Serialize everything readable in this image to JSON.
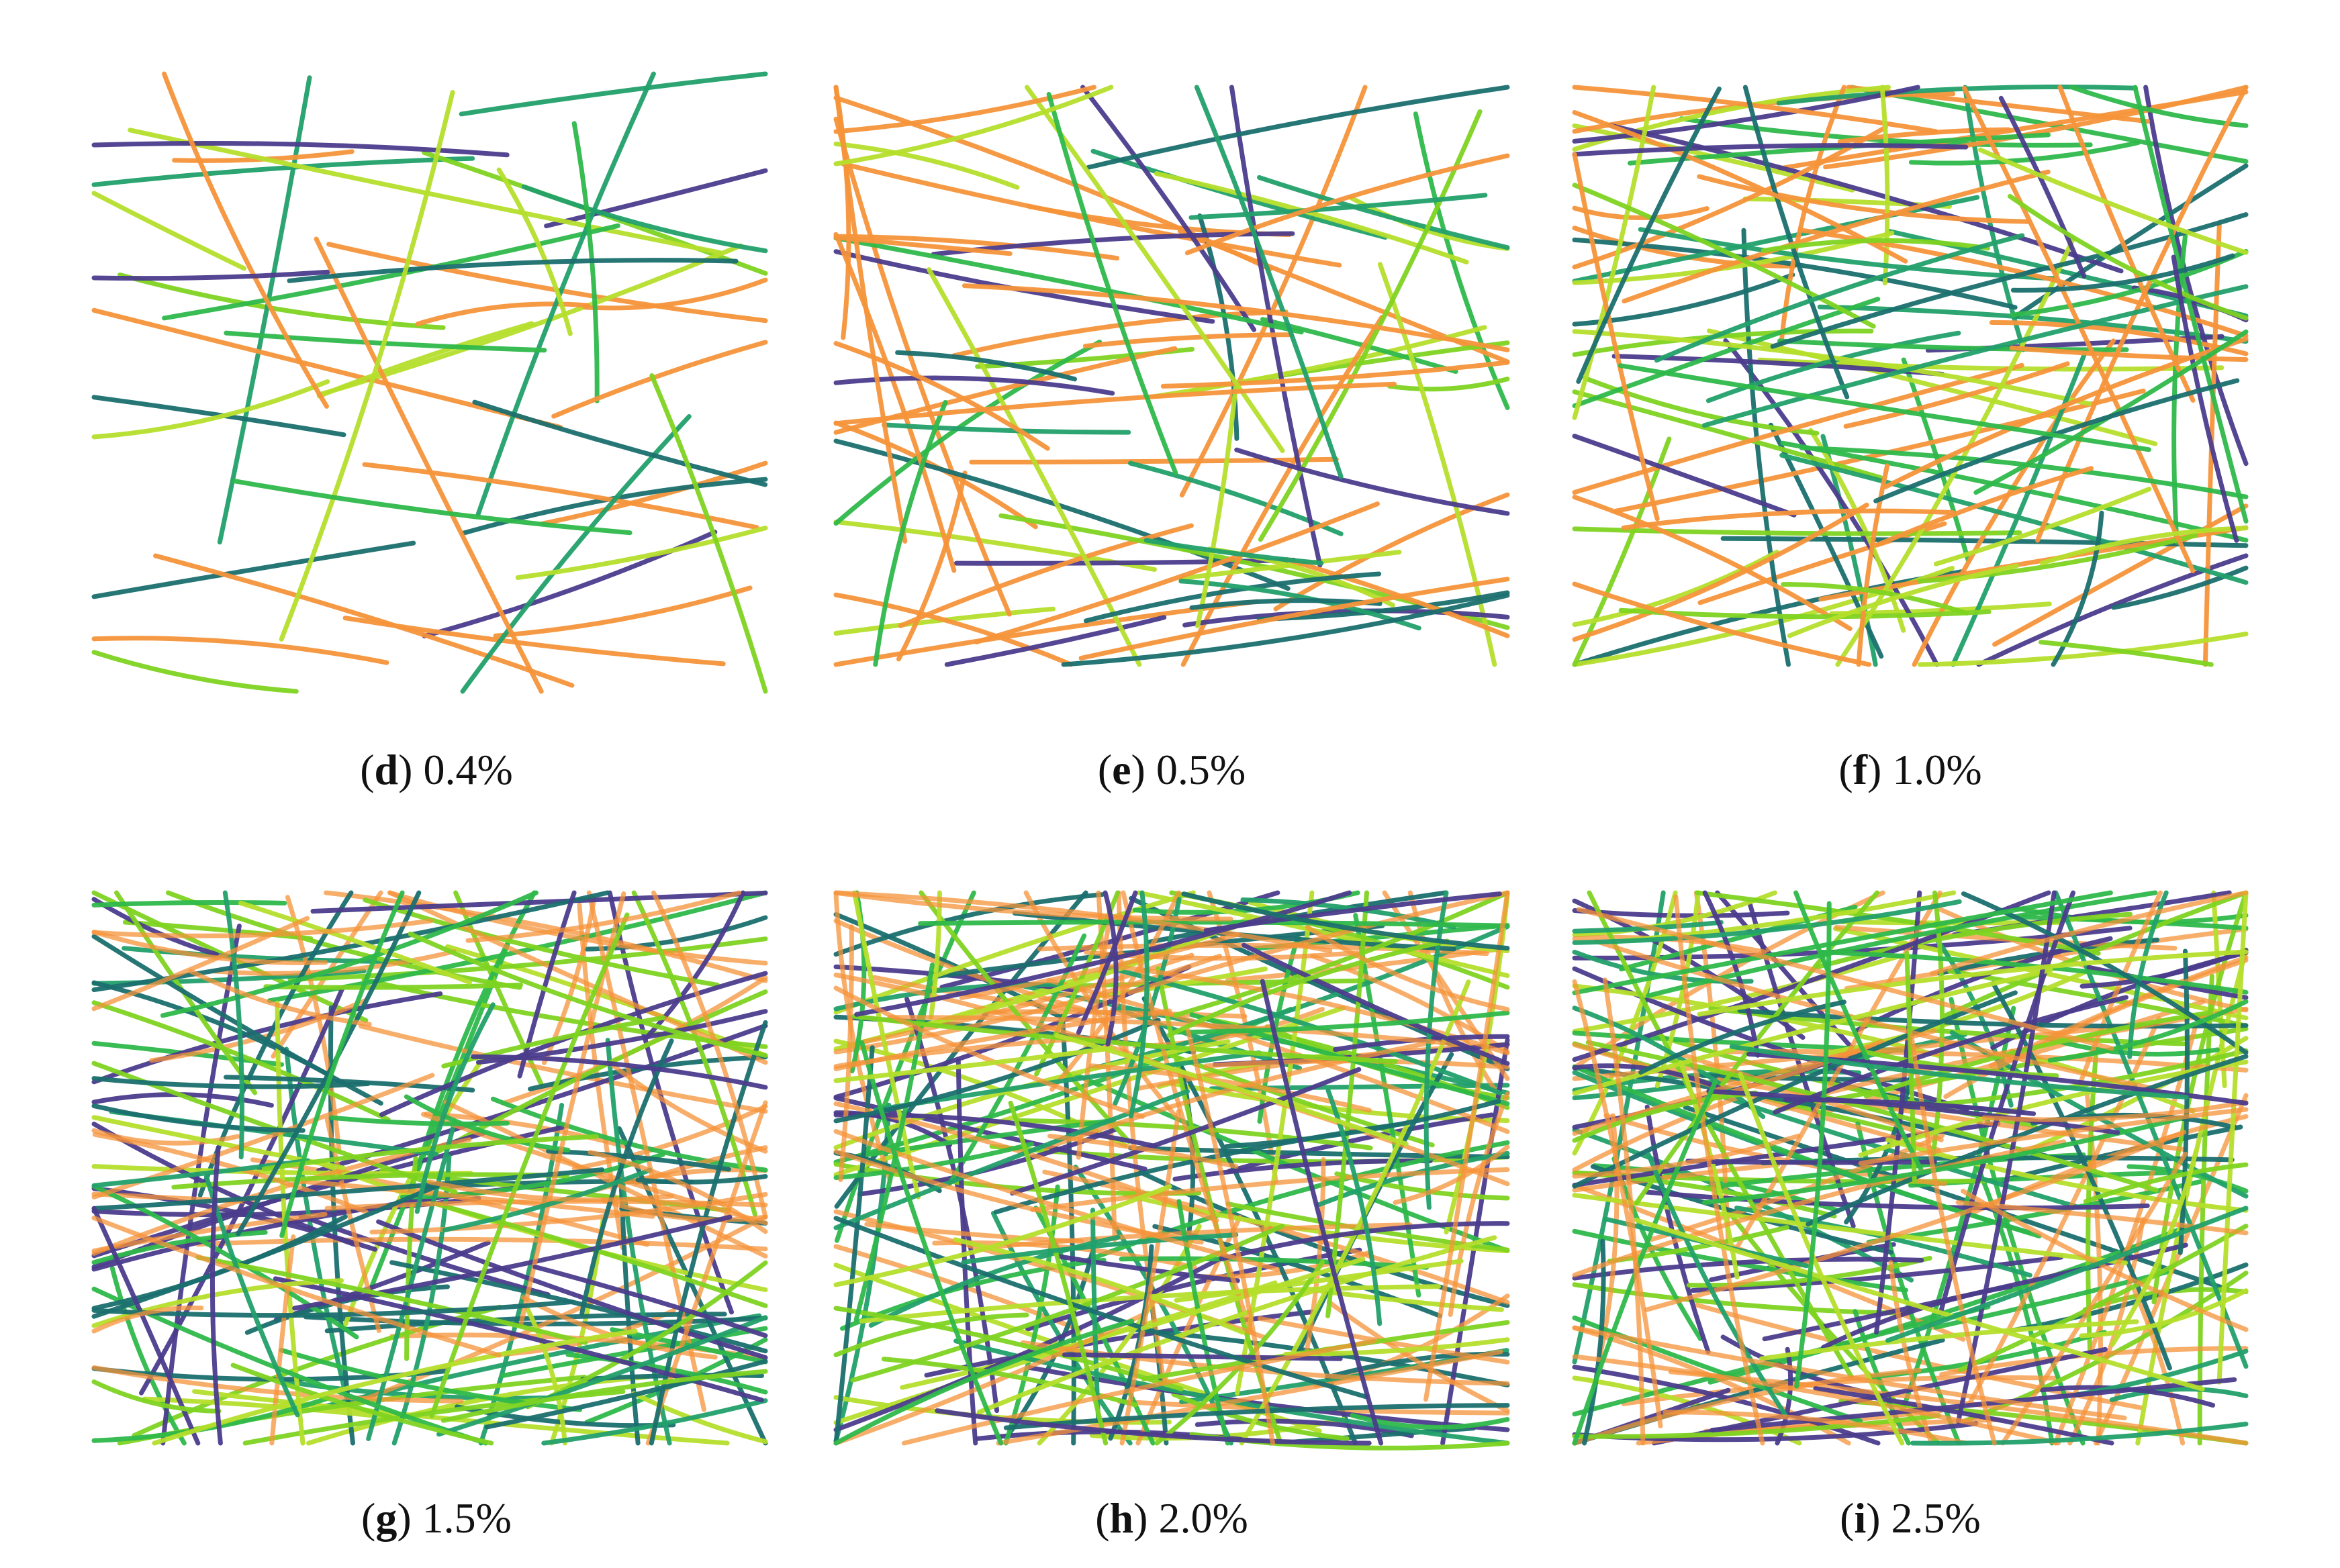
{
  "panels": [
    {
      "caption": [
        "(",
        "d",
        ") 0.4%"
      ]
    },
    {
      "caption": [
        "(",
        "e",
        ") 0.5%"
      ]
    },
    {
      "caption": [
        "(",
        "f",
        ") 1.0%"
      ]
    },
    {
      "caption": [
        "(",
        "g",
        ") 1.5%"
      ]
    },
    {
      "caption": [
        "(",
        "h",
        ") 2.0%"
      ]
    },
    {
      "caption": [
        "(",
        "i",
        ") 2.5%"
      ]
    }
  ]
}
